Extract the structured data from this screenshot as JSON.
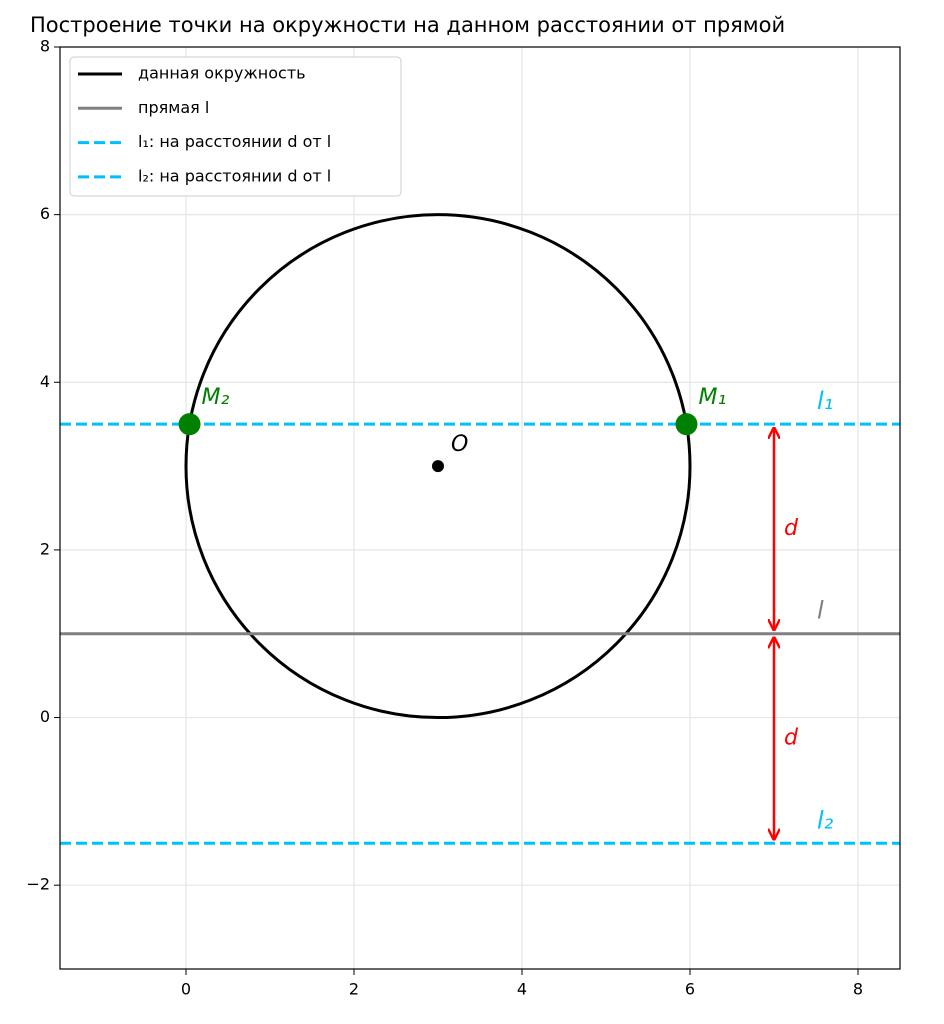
{
  "chart_data": {
    "type": "geometry",
    "title": "Построение точки на окружности на данном расстоянии от прямой",
    "xlim": [
      -1.5,
      8.5
    ],
    "ylim": [
      -3,
      8
    ],
    "xticks": [
      0,
      2,
      4,
      6,
      8
    ],
    "yticks": [
      {
        "value": -2,
        "label": "−2"
      },
      0,
      2,
      4,
      6,
      8
    ],
    "grid": true,
    "legend": "upper left",
    "circle": {
      "name": "данная окружность",
      "color": "#000000",
      "center": [
        3,
        3
      ],
      "radius": 3
    },
    "series": [
      {
        "name": "прямая l",
        "color": "#808080",
        "y": 1,
        "dashed": false,
        "label": "l"
      },
      {
        "name": "l₁: на расстоянии d от l",
        "color": "#00bfff",
        "y": 3.5,
        "dashed": true,
        "label": "l₁"
      },
      {
        "name": "l₂: на расстоянии d от l",
        "color": "#00bfff",
        "y": -1.5,
        "dashed": true,
        "label": "l₂"
      }
    ],
    "points": [
      {
        "label": "O",
        "x": 3,
        "y": 3,
        "color": "#000000"
      },
      {
        "label": "M₁",
        "x": 5.958,
        "y": 3.5,
        "color": "#008000"
      },
      {
        "label": "M₂",
        "x": 0.042,
        "y": 3.5,
        "color": "#008000"
      }
    ],
    "arrows": [
      {
        "x": 7,
        "y": [
          3.5,
          1
        ],
        "label": "d",
        "color": "#ff0000"
      },
      {
        "x": 7,
        "y": [
          1,
          -1.5
        ],
        "label": "d",
        "color": "#ff0000"
      }
    ]
  }
}
